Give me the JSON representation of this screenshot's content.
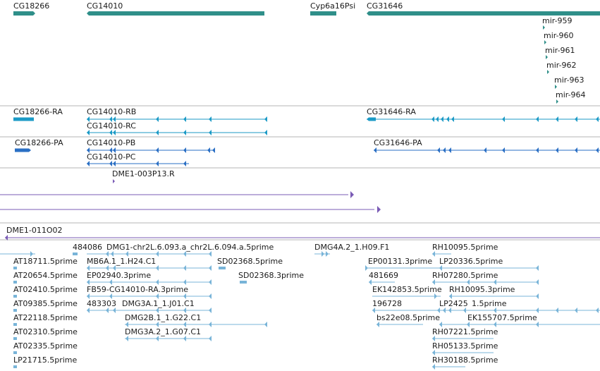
{
  "colors": {
    "gene": "#2f8f89",
    "rna": "#1b9ac6",
    "protein": "#2a6fc4",
    "clone": "#7a5bb5",
    "est": "#78b4d8",
    "divider": "#b4b4b4"
  },
  "tracks": {
    "genes": {
      "labels": [
        "CG18266",
        "CG14010",
        "Cyp6a16Psi",
        "CG31646"
      ],
      "mirnas": [
        "mir-959",
        "mir-960",
        "mir-961",
        "mir-962",
        "mir-963",
        "mir-964"
      ]
    },
    "transcripts": {
      "labels": [
        "CG18266-RA",
        "CG14010-RB",
        "CG14010-RC",
        "CG31646-RA"
      ]
    },
    "proteins": {
      "labels": [
        "CG18266-PA",
        "CG14010-PB",
        "CG14010-PC",
        "CG31646-PA"
      ]
    },
    "clones": {
      "labels": [
        "DME1-003P13.R",
        "DME1-011O02"
      ]
    },
    "ests": {
      "labels": [
        "484086",
        "DMG1-chr2L.6.093.a_chr2L.6.094.a.5prime",
        "DMG4A.2_1.H09.F1",
        "RH10095.5prime",
        "AT18711.5prime",
        "MB6A.1_1.H24.C1",
        "SD02368.5prime",
        "EP00131.3prime",
        "LP20336.5prime",
        "AT20654.5prime",
        "EP02940.3prime",
        "SD02368.3prime",
        "481669",
        "RH07280.5prime",
        "AT02410.5prime",
        "FB59-CG14010-RA.3prime",
        "EK142853.5prime",
        "RH10095.3prime",
        "AT09385.5prime",
        "483303",
        "DMG3A.1_1.J01.C1",
        "196728",
        "LP2425",
        "1.5prime",
        "AT22118.5prime",
        "DMG2B.1_1.G22.C1",
        "bs22e08.5prime",
        "EK155707.5prime",
        "AT02310.5prime",
        "DMG3A.2_1.G07.C1",
        "RH07221.5prime",
        "AT02335.5prime",
        "RH05133.5prime",
        "LP21715.5prime",
        "RH30188.5prime"
      ]
    }
  }
}
